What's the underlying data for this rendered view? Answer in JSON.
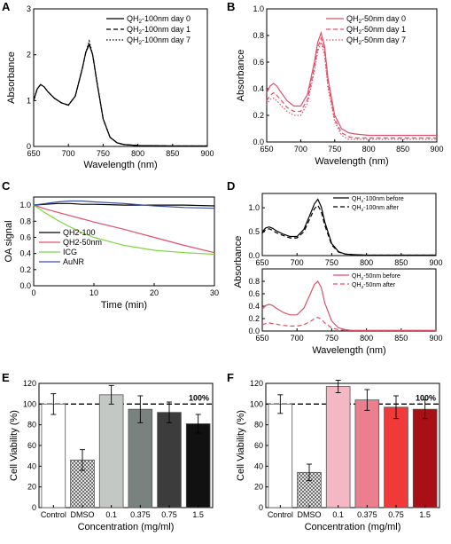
{
  "chart_data": [
    {
      "panel": "A",
      "type": "line",
      "xlabel": "Wavelength (nm)",
      "ylabel": "Absorbance",
      "xlim": [
        650,
        900
      ],
      "ylim": [
        0,
        3
      ],
      "xticks": [
        650,
        700,
        750,
        800,
        850,
        900
      ],
      "yticks": [
        0,
        1,
        2,
        3
      ],
      "legend_position": "top-right",
      "series": [
        {
          "name": "QH2-100nm day 0",
          "label_main": "QH",
          "label_sub": "2",
          "label_rest": "-100nm day 0",
          "color": "#000000",
          "dash": "solid",
          "x": [
            650,
            655,
            660,
            665,
            670,
            680,
            690,
            700,
            710,
            720,
            725,
            730,
            735,
            740,
            750,
            760,
            770,
            780,
            800,
            850,
            900
          ],
          "y": [
            1.0,
            1.25,
            1.35,
            1.3,
            1.2,
            1.05,
            0.95,
            0.9,
            1.1,
            1.7,
            2.05,
            2.22,
            2.0,
            1.5,
            0.6,
            0.2,
            0.08,
            0.04,
            0.02,
            0.01,
            0.01
          ]
        },
        {
          "name": "QH2-100nm day 1",
          "label_main": "QH",
          "label_sub": "2",
          "label_rest": "-100nm day 1",
          "color": "#000000",
          "dash": "dashed",
          "x": [
            650,
            655,
            660,
            665,
            670,
            680,
            690,
            700,
            710,
            720,
            725,
            730,
            735,
            740,
            750,
            760,
            770,
            780,
            800,
            850,
            900
          ],
          "y": [
            1.0,
            1.25,
            1.35,
            1.3,
            1.2,
            1.05,
            0.95,
            0.9,
            1.1,
            1.7,
            2.05,
            2.25,
            2.0,
            1.5,
            0.6,
            0.2,
            0.08,
            0.04,
            0.02,
            0.01,
            0.01
          ]
        },
        {
          "name": "QH2-100nm day 7",
          "label_main": "QH",
          "label_sub": "2",
          "label_rest": "-100nm day 7",
          "color": "#000000",
          "dash": "dotted",
          "x": [
            650,
            655,
            660,
            665,
            670,
            680,
            690,
            700,
            710,
            720,
            725,
            730,
            735,
            740,
            750,
            760,
            770,
            780,
            800,
            850,
            900
          ],
          "y": [
            1.0,
            1.25,
            1.35,
            1.3,
            1.2,
            1.05,
            0.95,
            0.9,
            1.1,
            1.7,
            2.05,
            2.3,
            2.0,
            1.5,
            0.6,
            0.2,
            0.08,
            0.04,
            0.02,
            0.01,
            0.01
          ]
        }
      ]
    },
    {
      "panel": "B",
      "type": "line",
      "xlabel": "Wavelength (nm)",
      "ylabel": "Absorbance",
      "xlim": [
        650,
        900
      ],
      "ylim": [
        0,
        1.0
      ],
      "xticks": [
        650,
        700,
        750,
        800,
        850,
        900
      ],
      "yticks": [
        0.0,
        0.2,
        0.4,
        0.6,
        0.8,
        1.0
      ],
      "legend_position": "top-right",
      "series": [
        {
          "name": "QH2-50nm day 0",
          "label_main": "QH",
          "label_sub": "2",
          "label_rest": "-50nm day 0",
          "color": "#e0506a",
          "dash": "solid",
          "x": [
            650,
            655,
            660,
            665,
            670,
            680,
            690,
            700,
            710,
            720,
            725,
            730,
            735,
            740,
            750,
            760,
            770,
            780,
            800,
            850,
            900
          ],
          "y": [
            0.37,
            0.42,
            0.44,
            0.42,
            0.38,
            0.31,
            0.27,
            0.27,
            0.36,
            0.6,
            0.75,
            0.82,
            0.72,
            0.48,
            0.2,
            0.1,
            0.07,
            0.06,
            0.05,
            0.05,
            0.05
          ]
        },
        {
          "name": "QH2-50nm day 1",
          "label_main": "QH",
          "label_sub": "2",
          "label_rest": "-50nm day 1",
          "color": "#e0506a",
          "dash": "dashed",
          "x": [
            650,
            655,
            660,
            665,
            670,
            680,
            690,
            700,
            710,
            720,
            725,
            730,
            735,
            740,
            750,
            760,
            770,
            780,
            800,
            850,
            900
          ],
          "y": [
            0.31,
            0.35,
            0.37,
            0.35,
            0.32,
            0.26,
            0.23,
            0.23,
            0.32,
            0.56,
            0.71,
            0.78,
            0.68,
            0.44,
            0.17,
            0.07,
            0.04,
            0.03,
            0.03,
            0.03,
            0.03
          ]
        },
        {
          "name": "QH2-50nm day 7",
          "label_main": "QH",
          "label_sub": "2",
          "label_rest": "-50nm day 7",
          "color": "#e0506a",
          "dash": "dotted",
          "x": [
            650,
            655,
            660,
            665,
            670,
            680,
            690,
            700,
            710,
            720,
            725,
            730,
            735,
            740,
            750,
            760,
            770,
            780,
            800,
            850,
            900
          ],
          "y": [
            0.28,
            0.32,
            0.33,
            0.31,
            0.28,
            0.23,
            0.2,
            0.2,
            0.29,
            0.53,
            0.68,
            0.75,
            0.65,
            0.41,
            0.15,
            0.05,
            0.02,
            0.02,
            0.02,
            0.02,
            0.02
          ]
        }
      ]
    },
    {
      "panel": "C",
      "type": "line",
      "xlabel": "Time (min)",
      "ylabel": "OA signal",
      "xlim": [
        0,
        30
      ],
      "ylim": [
        0,
        1.1
      ],
      "xticks": [
        0,
        10,
        20,
        30
      ],
      "yticks": [
        0.0,
        0.2,
        0.4,
        0.6,
        0.8,
        1.0
      ],
      "legend_position": "bottom-left",
      "series": [
        {
          "name": "QH2-100",
          "color": "#000000",
          "dash": "solid",
          "x": [
            0,
            2,
            4,
            6,
            8,
            10,
            15,
            20,
            25,
            30
          ],
          "y": [
            1.0,
            1.01,
            1.02,
            1.02,
            1.01,
            1.01,
            1.0,
            1.0,
            1.0,
            0.99
          ]
        },
        {
          "name": "QH2-50nm",
          "color": "#e0506a",
          "dash": "solid",
          "x": [
            0,
            2,
            4,
            6,
            8,
            10,
            15,
            20,
            25,
            30
          ],
          "y": [
            1.0,
            0.95,
            0.91,
            0.87,
            0.83,
            0.79,
            0.7,
            0.6,
            0.5,
            0.41
          ]
        },
        {
          "name": "ICG",
          "color": "#7ed640",
          "dash": "solid",
          "x": [
            0,
            2,
            4,
            6,
            8,
            10,
            15,
            20,
            25,
            30
          ],
          "y": [
            1.0,
            0.9,
            0.81,
            0.73,
            0.66,
            0.6,
            0.5,
            0.44,
            0.41,
            0.39
          ]
        },
        {
          "name": "AuNR",
          "color": "#3a4fa0",
          "dash": "solid",
          "x": [
            0,
            2,
            4,
            6,
            8,
            10,
            15,
            20,
            25,
            30
          ],
          "y": [
            1.0,
            1.02,
            1.04,
            1.05,
            1.05,
            1.04,
            1.02,
            0.99,
            0.97,
            0.96
          ]
        }
      ]
    },
    {
      "panel": "D",
      "type": "line",
      "ylabel": "Absorbance",
      "subplots": [
        {
          "xlim": [
            650,
            900
          ],
          "ylim": [
            0,
            1.3
          ],
          "xticks": [
            650,
            700,
            750,
            800,
            850,
            900
          ],
          "yticks": [
            0.0,
            0.5,
            1.0
          ],
          "legend_position": "top-right",
          "series": [
            {
              "name": "QH2-100nm before",
              "label_main": "QH",
              "label_sub": "2",
              "label_rest": "-100nm before",
              "color": "#000000",
              "dash": "solid",
              "x": [
                650,
                655,
                660,
                665,
                670,
                680,
                690,
                700,
                710,
                720,
                725,
                730,
                735,
                740,
                750,
                760,
                770,
                780,
                800,
                850,
                900
              ],
              "y": [
                0.5,
                0.58,
                0.6,
                0.57,
                0.52,
                0.45,
                0.4,
                0.4,
                0.55,
                0.9,
                1.08,
                1.18,
                1.02,
                0.7,
                0.25,
                0.08,
                0.03,
                0.02,
                0.01,
                0.01,
                0.01
              ]
            },
            {
              "name": "QH2-100nm after",
              "label_main": "QH",
              "label_sub": "2",
              "label_rest": "-100nm after",
              "color": "#000000",
              "dash": "dashed",
              "x": [
                650,
                655,
                660,
                665,
                670,
                680,
                690,
                700,
                710,
                720,
                725,
                730,
                735,
                740,
                750,
                760,
                770,
                780,
                800,
                850,
                900
              ],
              "y": [
                0.47,
                0.54,
                0.56,
                0.53,
                0.48,
                0.42,
                0.37,
                0.37,
                0.5,
                0.82,
                0.98,
                1.05,
                0.92,
                0.63,
                0.22,
                0.07,
                0.03,
                0.02,
                0.01,
                0.01,
                0.01
              ]
            }
          ]
        },
        {
          "xlabel": "Wavelength (nm)",
          "xlim": [
            650,
            900
          ],
          "ylim": [
            0,
            1.0
          ],
          "xticks": [
            650,
            700,
            750,
            800,
            850,
            900
          ],
          "yticks": [
            0.0,
            0.2,
            0.4,
            0.6,
            0.8
          ],
          "legend_position": "top-right",
          "series": [
            {
              "name": "QH2-50nm before",
              "label_main": "QH",
              "label_sub": "2",
              "label_rest": "-50nm before",
              "color": "#e0506a",
              "dash": "solid",
              "x": [
                650,
                655,
                660,
                665,
                670,
                680,
                690,
                700,
                710,
                720,
                725,
                730,
                735,
                740,
                750,
                760,
                770,
                780,
                800,
                850,
                900
              ],
              "y": [
                0.35,
                0.41,
                0.43,
                0.41,
                0.37,
                0.3,
                0.26,
                0.26,
                0.37,
                0.62,
                0.75,
                0.8,
                0.7,
                0.45,
                0.16,
                0.05,
                0.02,
                0.01,
                0.01,
                0.01,
                0.01
              ]
            },
            {
              "name": "QH2-50nm after",
              "label_main": "QH",
              "label_sub": "2",
              "label_rest": "-50nm after",
              "color": "#e0506a",
              "dash": "dashed",
              "x": [
                650,
                655,
                660,
                665,
                670,
                680,
                690,
                700,
                710,
                720,
                725,
                730,
                735,
                740,
                750,
                760,
                770,
                780,
                800,
                850,
                900
              ],
              "y": [
                0.1,
                0.12,
                0.13,
                0.12,
                0.11,
                0.09,
                0.08,
                0.08,
                0.1,
                0.16,
                0.2,
                0.22,
                0.19,
                0.13,
                0.05,
                0.02,
                0.01,
                0.01,
                0.01,
                0.01,
                0.01
              ]
            }
          ]
        }
      ]
    },
    {
      "panel": "E",
      "type": "bar",
      "xlabel": "Concentration (mg/ml)",
      "ylabel": "Cell Viability (%)",
      "ylim": [
        0,
        120
      ],
      "yticks": [
        0,
        20,
        40,
        60,
        80,
        100,
        120
      ],
      "categories": [
        "Control",
        "DMSO",
        "0.1",
        "0.375",
        "0.75",
        "1.5"
      ],
      "values": [
        100,
        46,
        109,
        95,
        92,
        81
      ],
      "errors": [
        10,
        10,
        9,
        13,
        10,
        9
      ],
      "bar_colors": [
        "#ffffff",
        "pattern",
        "#c4c8c4",
        "#7a8280",
        "#3c3c3c",
        "#111111"
      ],
      "reference_line": {
        "value": 100,
        "label": "100%"
      }
    },
    {
      "panel": "F",
      "type": "bar",
      "xlabel": "Concentration (mg/ml)",
      "ylabel": "Cell Viability (%)",
      "ylim": [
        0,
        120
      ],
      "yticks": [
        0,
        20,
        40,
        60,
        80,
        100,
        120
      ],
      "categories": [
        "Control",
        "DMSO",
        "0.1",
        "0.375",
        "0.75",
        "1.5"
      ],
      "values": [
        100,
        34,
        117,
        104,
        97,
        95
      ],
      "errors": [
        9,
        8,
        6,
        10,
        11,
        9
      ],
      "bar_colors": [
        "#ffffff",
        "pattern",
        "#f3b8c4",
        "#ec7f8e",
        "#f03a3a",
        "#a81016"
      ],
      "reference_line": {
        "value": 100,
        "label": "100%"
      }
    }
  ]
}
